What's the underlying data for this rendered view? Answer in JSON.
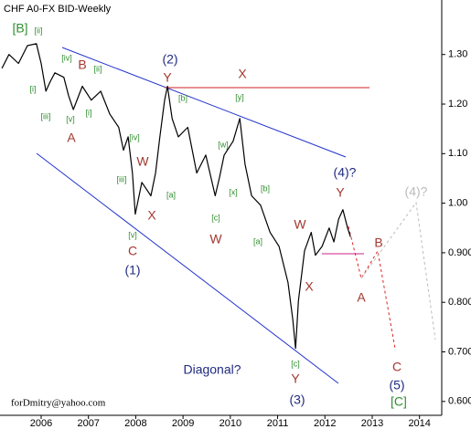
{
  "chart_data": {
    "type": "line",
    "title": "CHF A0-FX BID-Weekly",
    "footer": "forDmitry@yahoo.com",
    "x": [
      2005.17,
      2005.32,
      2005.52,
      2005.71,
      2005.9,
      2006.0,
      2006.1,
      2006.19,
      2006.29,
      2006.48,
      2006.58,
      2006.68,
      2006.87,
      2007.06,
      2007.26,
      2007.45,
      2007.64,
      2007.74,
      2007.84,
      2007.93,
      2007.99,
      2008.13,
      2008.32,
      2008.42,
      2008.51,
      2008.61,
      2008.67,
      2008.77,
      2008.9,
      2009.1,
      2009.29,
      2009.48,
      2009.68,
      2009.77,
      2009.87,
      2010.06,
      2010.2,
      2010.31,
      2010.45,
      2010.64,
      2010.84,
      2011.03,
      2011.22,
      2011.32,
      2011.38,
      2011.44,
      2011.57,
      2011.71,
      2011.8,
      2011.94,
      2012.09,
      2012.19,
      2012.29,
      2012.38,
      2012.48,
      2012.54
    ],
    "values": [
      1.272,
      1.3,
      1.282,
      1.318,
      1.322,
      1.282,
      1.226,
      1.245,
      1.263,
      1.254,
      1.217,
      1.189,
      1.236,
      1.208,
      1.226,
      1.18,
      1.153,
      1.107,
      1.134,
      1.061,
      0.978,
      1.042,
      1.015,
      1.061,
      1.134,
      1.208,
      1.236,
      1.171,
      1.134,
      1.153,
      1.061,
      1.097,
      1.015,
      1.051,
      1.097,
      1.125,
      1.171,
      1.079,
      1.015,
      0.996,
      0.941,
      0.913,
      0.84,
      0.766,
      0.707,
      0.803,
      0.904,
      0.941,
      0.895,
      0.913,
      0.95,
      0.922,
      0.968,
      0.987,
      0.95,
      0.932
    ],
    "color": "#000000",
    "xlim": [
      2005.13,
      2014.47
    ],
    "ylim": [
      0.572,
      1.41
    ],
    "xticks": [
      2006,
      2007,
      2008,
      2009,
      2010,
      2011,
      2012,
      2013,
      2014
    ],
    "yticks": [
      {
        "value": 1.3,
        "label": "1.30"
      },
      {
        "value": 1.2,
        "label": "1.20"
      },
      {
        "value": 1.1,
        "label": "1.10"
      },
      {
        "value": 1,
        "label": "1.00"
      },
      {
        "value": 0.9,
        "label": "0.900"
      },
      {
        "value": 0.8,
        "label": "0.800"
      },
      {
        "value": 0.7,
        "label": "0.700"
      },
      {
        "value": 0.6,
        "label": "0.600"
      }
    ],
    "annotations": [
      "[B]",
      "[ii]",
      "[i]",
      "[iii]",
      "[iv]",
      "[v]",
      "[i]",
      "[ii]",
      "B",
      "A",
      "[iv]",
      "[iii]",
      "[v]",
      "W",
      "X",
      "C",
      "(1)",
      "(2)",
      "Y",
      "[b]",
      "[a]",
      "X",
      "[y]",
      "[w]",
      "[x]",
      "[c]",
      "W",
      "[b]",
      "[a]",
      "W",
      "X",
      "(4)?",
      "Y",
      "B",
      "A",
      "[c]",
      "Y",
      "(3)",
      "Diagonal?",
      "(4)?",
      "C",
      "(5)",
      "[C]"
    ]
  }
}
